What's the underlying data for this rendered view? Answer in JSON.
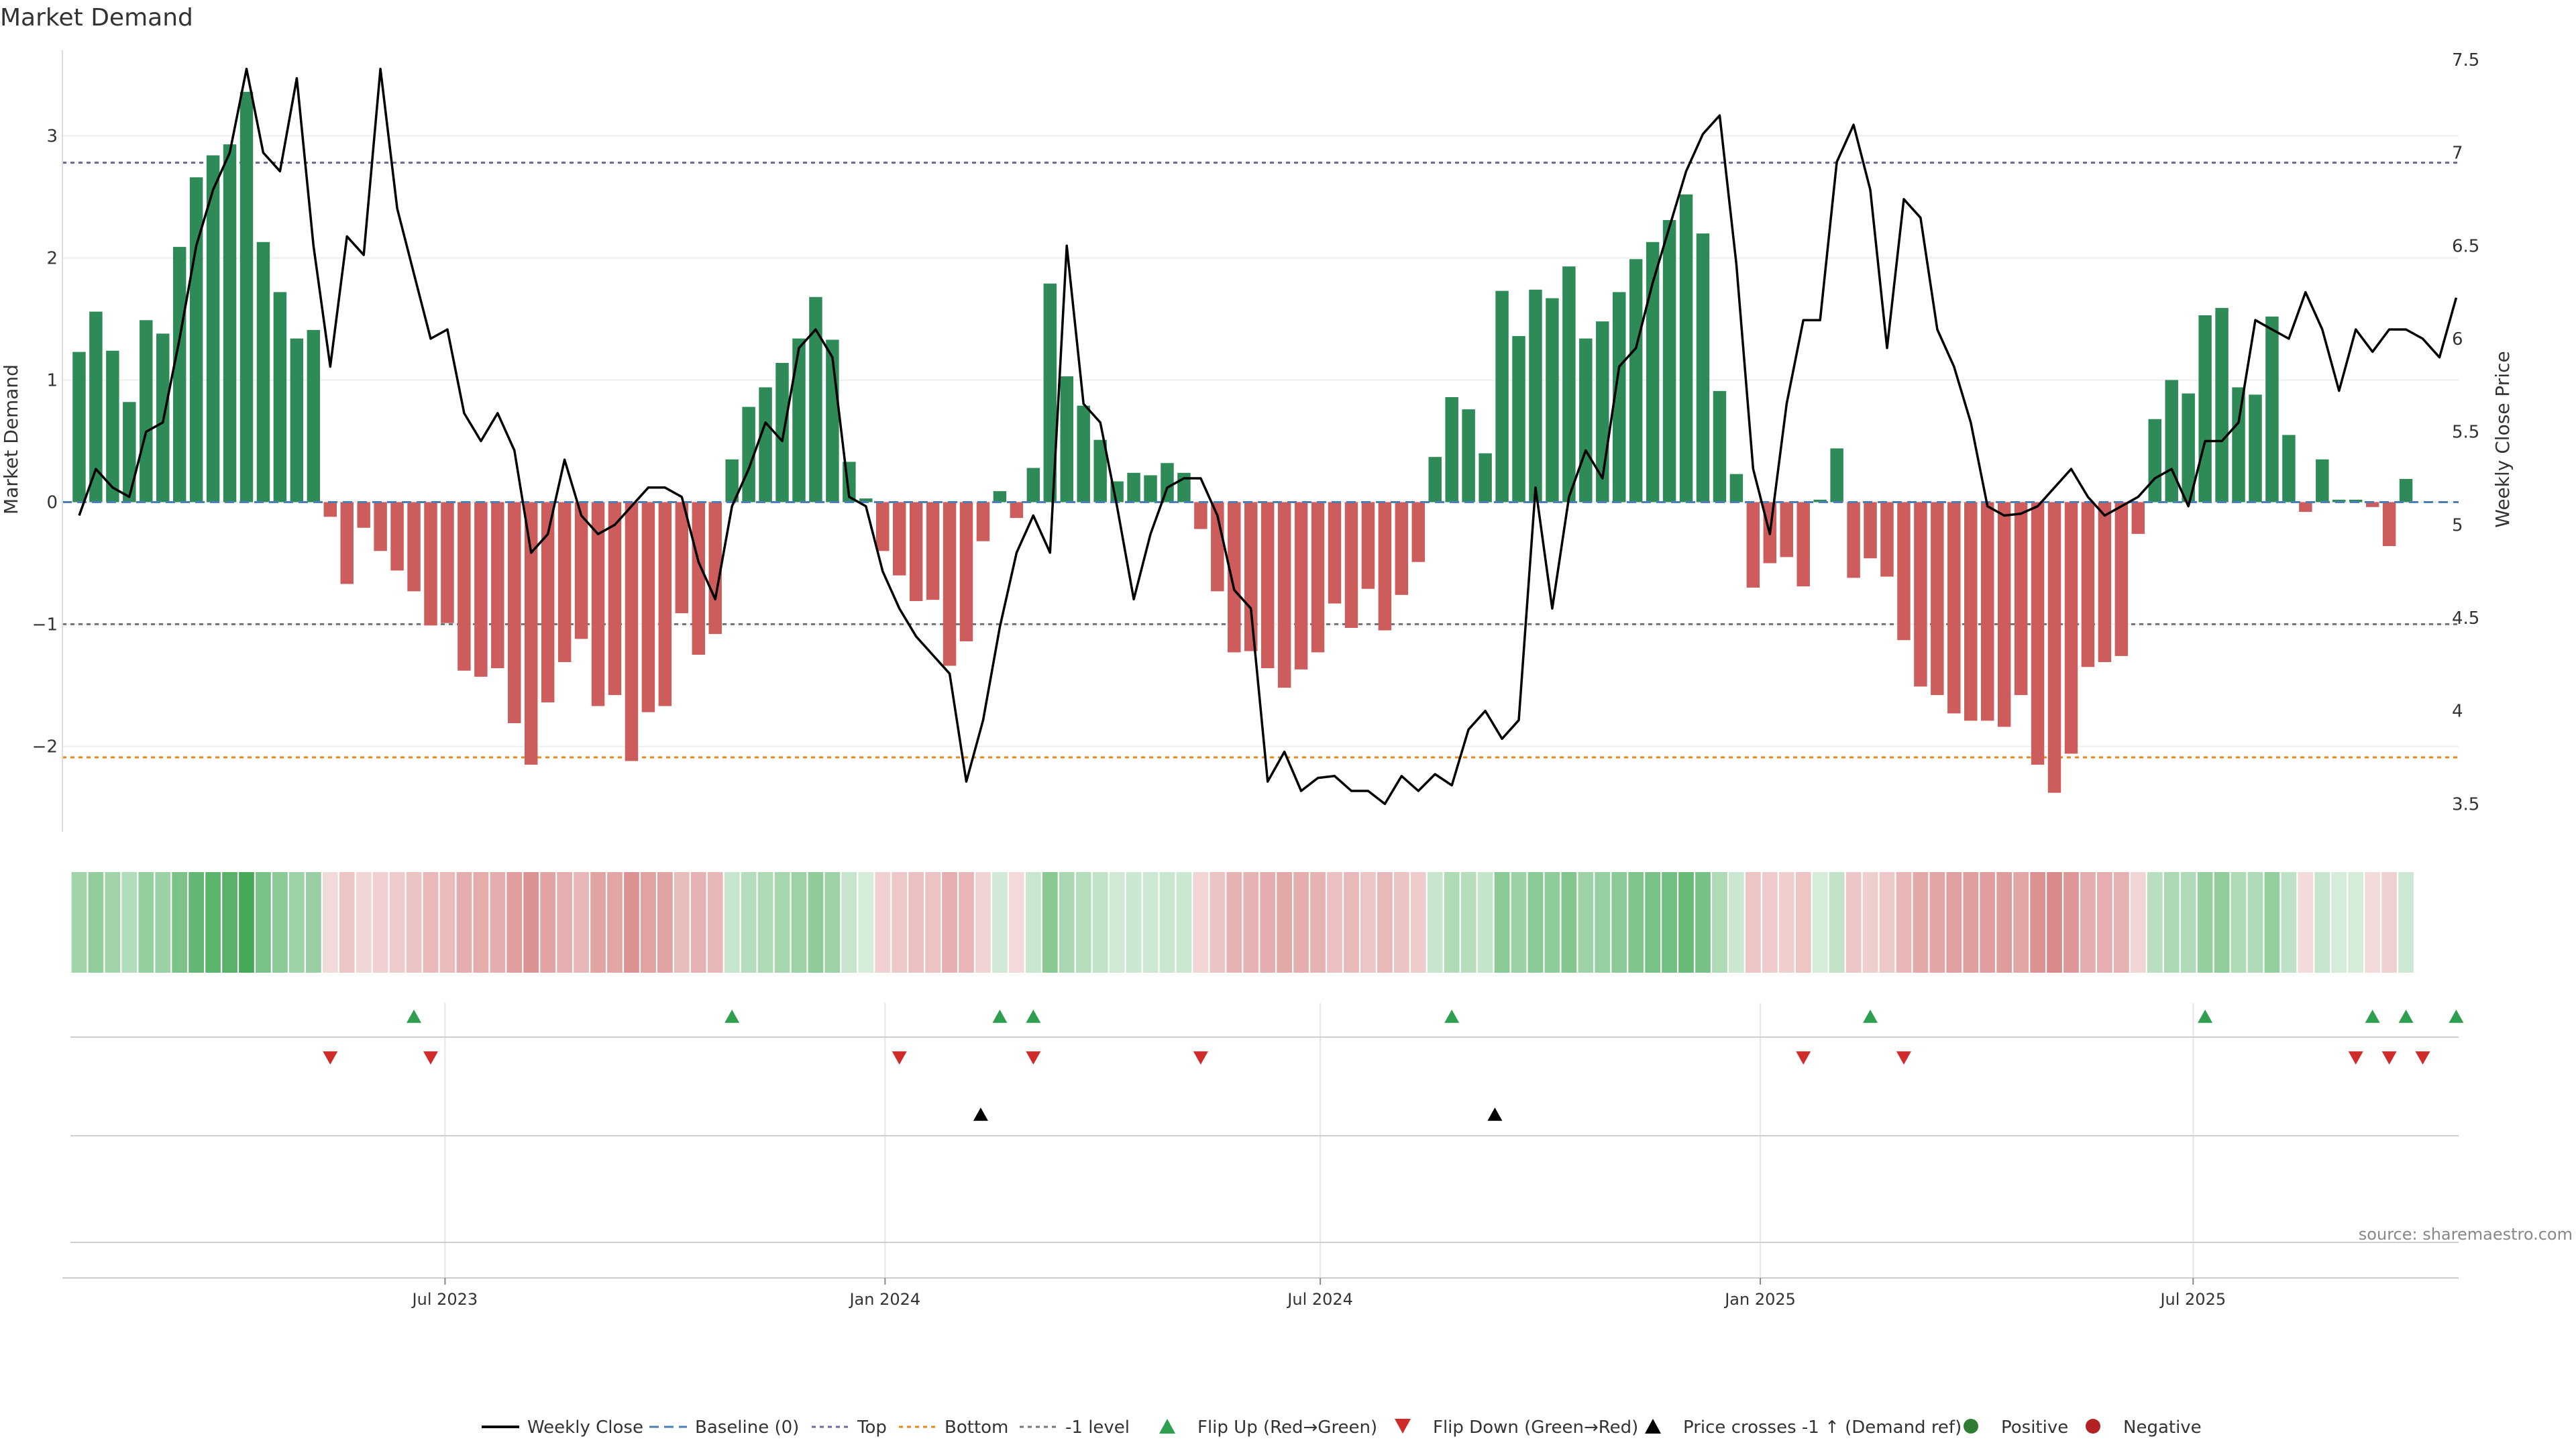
{
  "title": "Market Demand",
  "source": "source: sharemaestro.com",
  "chart_data": {
    "type": "bar",
    "title": "Market Demand",
    "ylabel": "Market Demand",
    "y2label": "Weekly Close Price",
    "ylim": [
      -2.7,
      3.7
    ],
    "y2lim": [
      3.35,
      7.55
    ],
    "xlim": [
      "2023-01-22",
      "2025-10-20"
    ],
    "left_ticks": [
      -2,
      -1,
      0,
      1,
      2,
      3
    ],
    "left_tick_labels": [
      "−2",
      "−1",
      "0",
      "1",
      "2",
      "3"
    ],
    "right_ticks": [
      3.5,
      4,
      4.5,
      5,
      5.5,
      6,
      6.5,
      7,
      7.5
    ],
    "right_tick_labels": [
      "3.5",
      "4",
      "4.5",
      "5",
      "5.5",
      "6",
      "6.5",
      "7",
      "7.5"
    ],
    "x_ticks": [
      {
        "date": "2023-07-01",
        "label": "Jul 2023"
      },
      {
        "date": "2024-01-01",
        "label": "Jan 2024"
      },
      {
        "date": "2024-07-01",
        "label": "Jul 2024"
      },
      {
        "date": "2025-01-01",
        "label": "Jan 2025"
      },
      {
        "date": "2025-07-01",
        "label": "Jul 2025"
      }
    ],
    "reference_lines": [
      {
        "name": "Top",
        "value": 2.78,
        "color": "#6b6b9a"
      },
      {
        "name": "Bottom",
        "value": -2.09,
        "color": "#e08a1c"
      },
      {
        "name": "-1 level",
        "value": -1,
        "color": "#777777"
      }
    ],
    "start_date": "2023-01-29",
    "demand": [
      1.23,
      1.56,
      1.24,
      0.82,
      1.49,
      1.38,
      2.09,
      2.66,
      2.84,
      2.93,
      3.36,
      2.13,
      1.72,
      1.34,
      1.41,
      -0.12,
      -0.67,
      -0.21,
      -0.4,
      -0.56,
      -0.73,
      -1.01,
      -0.99,
      -1.38,
      -1.43,
      -1.36,
      -1.81,
      -2.15,
      -1.64,
      -1.31,
      -1.12,
      -1.67,
      -1.58,
      -2.12,
      -1.72,
      -1.67,
      -0.91,
      -1.25,
      -1.08,
      0.35,
      0.78,
      0.94,
      1.14,
      1.34,
      1.68,
      1.33,
      0.33,
      0.03,
      -0.4,
      -0.6,
      -0.81,
      -0.8,
      -1.34,
      -1.14,
      -0.32,
      0.09,
      -0.13,
      0.28,
      1.79,
      1.03,
      0.79,
      0.51,
      0.17,
      0.24,
      0.22,
      0.32,
      0.24,
      -0.22,
      -0.73,
      -1.23,
      -1.22,
      -1.36,
      -1.52,
      -1.37,
      -1.23,
      -0.83,
      -1.03,
      -0.71,
      -1.05,
      -0.76,
      -0.49,
      0.37,
      0.86,
      0.76,
      0.4,
      1.73,
      1.36,
      1.74,
      1.67,
      1.93,
      1.34,
      1.48,
      1.72,
      1.99,
      2.13,
      2.31,
      2.52,
      2.2,
      0.91,
      0.23,
      -0.7,
      -0.5,
      -0.45,
      -0.69,
      0.02,
      0.44,
      -0.62,
      -0.46,
      -0.61,
      -1.13,
      -1.51,
      -1.58,
      -1.73,
      -1.79,
      -1.79,
      -1.84,
      -1.58,
      -2.15,
      -2.38,
      -2.06,
      -1.35,
      -1.31,
      -1.26,
      -0.26,
      0.68,
      1.0,
      0.89,
      1.53,
      1.59,
      0.94,
      0.88,
      1.52,
      0.55,
      -0.08,
      0.35,
      0.02,
      0.02,
      -0.04,
      -0.36,
      0.19
    ],
    "close": [
      5.05,
      5.3,
      5.2,
      5.15,
      5.5,
      5.55,
      6.0,
      6.5,
      6.8,
      7.0,
      7.45,
      7.0,
      6.9,
      7.4,
      6.5,
      5.85,
      6.55,
      6.45,
      7.45,
      6.7,
      6.35,
      6.0,
      6.05,
      5.6,
      5.45,
      5.6,
      5.4,
      4.85,
      4.95,
      5.35,
      5.05,
      4.95,
      5.0,
      5.1,
      5.2,
      5.2,
      5.15,
      4.8,
      4.6,
      5.1,
      5.3,
      5.55,
      5.45,
      5.95,
      6.05,
      5.9,
      5.15,
      5.1,
      4.75,
      4.55,
      4.4,
      4.3,
      4.2,
      3.62,
      3.95,
      4.45,
      4.85,
      5.05,
      4.85,
      6.5,
      5.65,
      5.55,
      5.1,
      4.6,
      4.95,
      5.2,
      5.25,
      5.25,
      5.05,
      4.65,
      4.55,
      3.62,
      3.78,
      3.57,
      3.64,
      3.65,
      3.57,
      3.57,
      3.5,
      3.65,
      3.57,
      3.66,
      3.6,
      3.9,
      4.0,
      3.85,
      3.95,
      5.2,
      4.55,
      5.15,
      5.4,
      5.25,
      5.85,
      5.95,
      6.3,
      6.6,
      6.9,
      7.1,
      7.2,
      6.4,
      5.3,
      4.95,
      5.65,
      6.1,
      6.1,
      6.95,
      7.15,
      6.8,
      5.95,
      6.75,
      6.65,
      6.05,
      5.85,
      5.55,
      5.1,
      5.05,
      5.06,
      5.1,
      5.2,
      5.3,
      5.15,
      5.05,
      5.1,
      5.15,
      5.25,
      5.3,
      5.1,
      5.45,
      5.45,
      5.55,
      6.1,
      6.05,
      6.0,
      6.25,
      6.05,
      5.72,
      6.05,
      5.93,
      6.05,
      6.05,
      6.0,
      5.9,
      6.22
    ],
    "series": [
      {
        "name": "Weekly Close",
        "color": "#000000"
      },
      {
        "name": "Baseline (0)",
        "color": "#4a7fb5"
      },
      {
        "name": "Top",
        "color": "#6b6b9a"
      },
      {
        "name": "Bottom",
        "color": "#e08a1c"
      },
      {
        "name": "-1 level",
        "color": "#777777"
      },
      {
        "name": "Flip Up (Red→Green)",
        "color": "#2e9e4f"
      },
      {
        "name": "Flip Down (Green→Red)",
        "color": "#d02b2b"
      },
      {
        "name": "Price crosses -1 ↑ (Demand ref)",
        "color": "#000000"
      },
      {
        "name": "Positive",
        "color": "#2e7d32"
      },
      {
        "name": "Negative",
        "color": "#b22222"
      }
    ],
    "flip_up_dates": [
      "2023-06-18",
      "2023-10-29",
      "2024-02-18",
      "2024-03-03",
      "2024-08-25",
      "2025-02-16",
      "2025-07-06",
      "2025-09-14",
      "2025-09-28",
      "2025-10-19"
    ],
    "flip_down_dates": [
      "2023-05-14",
      "2023-06-25",
      "2024-01-07",
      "2024-03-03",
      "2024-05-12",
      "2025-01-19",
      "2025-03-02",
      "2025-09-07",
      "2025-09-21",
      "2025-10-05"
    ],
    "price_cross_dates": [
      "2024-02-10",
      "2024-09-12"
    ],
    "colors": {
      "positive_bar": "#2e8b57",
      "negative_bar": "#cd5c5c",
      "flip_up": "#2e9e4f",
      "flip_down": "#d02b2b"
    }
  }
}
